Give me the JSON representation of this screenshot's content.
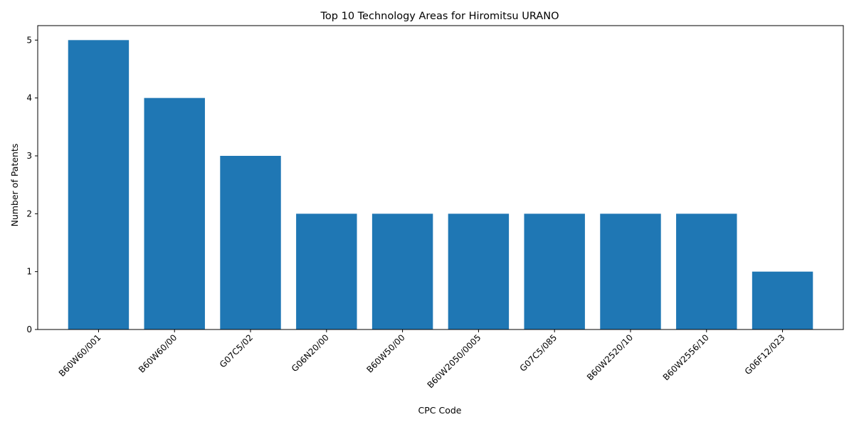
{
  "chart_data": {
    "type": "bar",
    "title": "Top 10 Technology Areas for Hiromitsu URANO",
    "xlabel": "CPC Code",
    "ylabel": "Number of Patents",
    "categories": [
      "B60W60/001",
      "B60W60/00",
      "G07C5/02",
      "G06N20/00",
      "B60W50/00",
      "B60W2050/0005",
      "G07C5/085",
      "B60W2520/10",
      "B60W2556/10",
      "G06F12/023"
    ],
    "values": [
      5,
      4,
      3,
      2,
      2,
      2,
      2,
      2,
      2,
      1
    ],
    "ylim": [
      0,
      5.25
    ],
    "yticks": [
      0,
      1,
      2,
      3,
      4,
      5
    ],
    "grid": false,
    "legend": "none",
    "bar_color": "#1f77b4"
  }
}
